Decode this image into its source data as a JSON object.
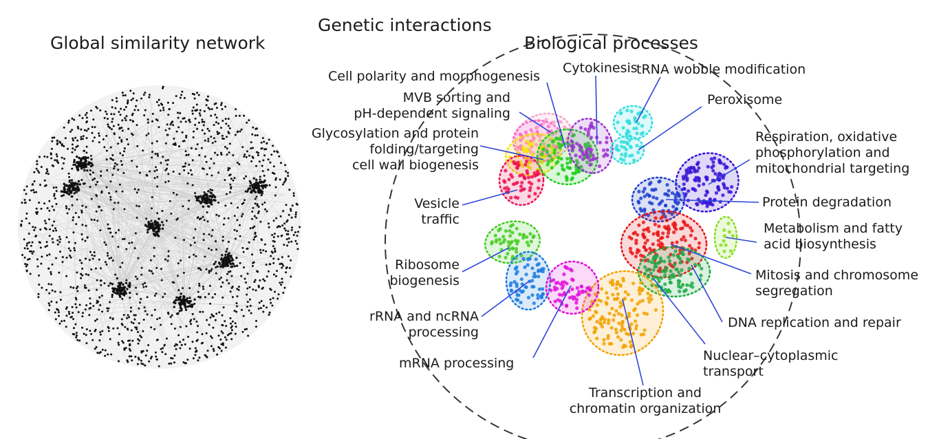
{
  "headings": {
    "left": "Global similarity network",
    "right_top": "Genetic interactions",
    "right_sub": "Biological processes"
  },
  "colors": {
    "network_dots": "#111111",
    "leader_line": "#2b45d8",
    "boundary": "#333333"
  },
  "clusters": [
    {
      "id": "cell-polarity",
      "color": "#f3a6c9"
    },
    {
      "id": "mvb-sorting",
      "color": "#ff66cc"
    },
    {
      "id": "glycosylation",
      "color": "#f5e400"
    },
    {
      "id": "vesicle",
      "color": "#ee1155"
    },
    {
      "id": "cytokinesis",
      "color": "#9933cc"
    },
    {
      "id": "cell-polarity-green",
      "color": "#22cc22"
    },
    {
      "id": "trna",
      "color": "#33dddd"
    },
    {
      "id": "respiration",
      "color": "#3a14d6"
    },
    {
      "id": "protein-degradation",
      "color": "#1f3fcc"
    },
    {
      "id": "metabolism",
      "color": "#88dd22"
    },
    {
      "id": "mitosis",
      "color": "#e81515"
    },
    {
      "id": "dna-replication",
      "color": "#1eaa44"
    },
    {
      "id": "transcription",
      "color": "#f2a100"
    },
    {
      "id": "ribosome",
      "color": "#44cc22"
    },
    {
      "id": "rrna",
      "color": "#1c7de0"
    },
    {
      "id": "mrna",
      "color": "#e010d8"
    }
  ],
  "labels": {
    "cell_polarity": "Cell polarity and morphogenesis",
    "cytokinesis": "Cytokinesis",
    "trna": "tRNA wobble modification",
    "mvb": [
      "MVB sorting and",
      "pH-dependent signaling"
    ],
    "peroxisome": "Peroxisome",
    "glycosylation": [
      "Glycosylation and protein",
      "folding/targeting",
      "cell wall biogenesis"
    ],
    "respiration": [
      "Respiration, oxidative",
      "phosphorylation and",
      "mitochondrial targeting"
    ],
    "vesicle": [
      "Vesicle",
      "traffic"
    ],
    "protein_degradation": "Protein degradation",
    "metabolism": [
      "Metabolism and fatty",
      "acid biosynthesis"
    ],
    "ribosome": [
      "Ribosome",
      "biogenesis"
    ],
    "mitosis": [
      "Mitosis and chromosome",
      "segregation"
    ],
    "rrna": [
      "rRNA and ncRNA",
      "processing"
    ],
    "dna": "DNA replication and repair",
    "mrna": "mRNA processing",
    "nuclear": [
      "Nuclear–cytoplasmic",
      "transport"
    ],
    "transcription": [
      "Transcription and",
      "chromatin organization"
    ]
  }
}
